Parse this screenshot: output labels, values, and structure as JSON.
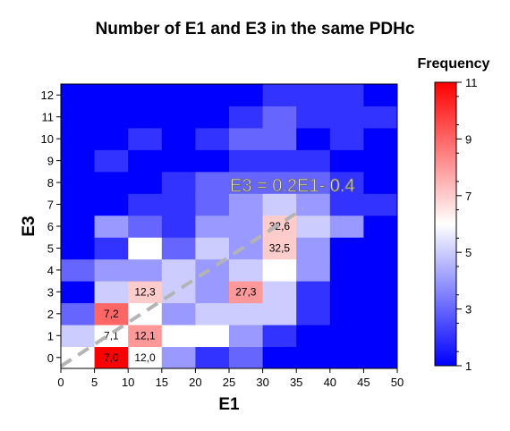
{
  "chart_data": {
    "type": "heatmap",
    "title": "Number of E1 and E3 in the same PDHc",
    "xlabel": "E1",
    "ylabel": "E3",
    "x_ticks": [
      0,
      5,
      10,
      15,
      20,
      25,
      30,
      35,
      40,
      45,
      50
    ],
    "y_ticks": [
      0,
      1,
      2,
      3,
      4,
      5,
      6,
      7,
      8,
      9,
      10,
      11,
      12
    ],
    "x_range": [
      0,
      50
    ],
    "y_range": [
      -0.5,
      12.5
    ],
    "cell_width": 5,
    "grid": [
      {
        "y": 0,
        "values": [
          6,
          11,
          6,
          4,
          2,
          3,
          1,
          1,
          1,
          1
        ]
      },
      {
        "y": 1,
        "values": [
          5,
          6,
          8,
          6,
          6,
          4,
          2,
          1,
          1,
          1
        ]
      },
      {
        "y": 2,
        "values": [
          3,
          9,
          6,
          4,
          5,
          5,
          5,
          2,
          1,
          1
        ]
      },
      {
        "y": 3,
        "values": [
          1,
          5,
          7,
          5,
          4,
          8,
          5,
          2,
          1,
          1
        ]
      },
      {
        "y": 4,
        "values": [
          3,
          4,
          4,
          5,
          4,
          5,
          6,
          4,
          1,
          1
        ]
      },
      {
        "y": 5,
        "values": [
          1,
          2,
          6,
          3,
          5,
          4,
          7,
          4,
          1,
          1
        ]
      },
      {
        "y": 6,
        "values": [
          1,
          4,
          3,
          2,
          4,
          4,
          7,
          5,
          4,
          1
        ]
      },
      {
        "y": 7,
        "values": [
          1,
          1,
          2,
          2,
          3,
          4,
          5,
          4,
          2,
          2
        ]
      },
      {
        "y": 8,
        "values": [
          1,
          1,
          1,
          2,
          3,
          3,
          3,
          3,
          2,
          1
        ]
      },
      {
        "y": 9,
        "values": [
          1,
          2,
          1,
          1,
          1,
          2,
          2,
          2,
          1,
          1
        ]
      },
      {
        "y": 10,
        "values": [
          1,
          1,
          2,
          1,
          2,
          3,
          3,
          1,
          2,
          1
        ]
      },
      {
        "y": 11,
        "values": [
          1,
          1,
          1,
          1,
          1,
          2,
          3,
          2,
          2,
          2
        ]
      },
      {
        "y": 12,
        "values": [
          1,
          1,
          1,
          1,
          1,
          1,
          2,
          2,
          2,
          1
        ]
      }
    ],
    "cell_labels": [
      {
        "x": 7.5,
        "y": 0,
        "text": "7,0"
      },
      {
        "x": 12.5,
        "y": 0,
        "text": "12,0"
      },
      {
        "x": 7.5,
        "y": 1,
        "text": "7,1"
      },
      {
        "x": 12.5,
        "y": 1,
        "text": "12,1"
      },
      {
        "x": 7.5,
        "y": 2,
        "text": "7,2"
      },
      {
        "x": 12.5,
        "y": 3,
        "text": "12,3"
      },
      {
        "x": 27.5,
        "y": 3,
        "text": "27,3"
      },
      {
        "x": 32.5,
        "y": 5,
        "text": "32,5"
      },
      {
        "x": 32.5,
        "y": 6,
        "text": "32,6"
      }
    ],
    "fit_line": {
      "equation": "E3 = 0.2E1- 0.4",
      "slope": 0.2,
      "intercept": -0.4,
      "x_start": 0,
      "x_end": 36
    },
    "colorbar": {
      "title": "Frequency",
      "min": 1,
      "max": 11,
      "ticks": [
        1,
        3,
        5,
        7,
        9,
        11
      ],
      "colors": [
        "#0000ff",
        "#ffffff",
        "#ff0000"
      ]
    }
  }
}
